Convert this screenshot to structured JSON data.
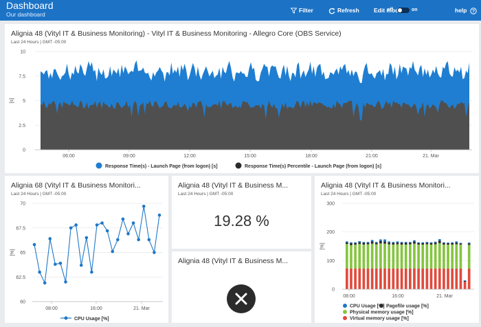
{
  "header": {
    "title": "Dashboard",
    "subtitle": "Our dashboard",
    "filter_label": "Filter",
    "refresh_label": "Refresh",
    "edit_mode_label": "Edit mode",
    "toggle_off": "off",
    "toggle_on": "on",
    "help_label": "help"
  },
  "colors": {
    "header_bg": "#1c73c6",
    "blue_series": "#1f7ed1",
    "grey_series": "#4f4f4f",
    "cpu": "#1f77c8",
    "physical": "#86c540",
    "virtual": "#e04b3d",
    "pagefile": "#2a2a2a"
  },
  "panels": {
    "main": {
      "title": "Alignia 48 (Vityl IT & Business Monitoring) - Vityl IT & Business Monitoring - Allegro Core (OBS Service)",
      "subtitle": "Last 24 Hours | GMT -05:00"
    },
    "cpu": {
      "title": "Alignia 68 (Vityl IT & Business Monitori...",
      "subtitle": "Last 24 Hours | GMT -05:00"
    },
    "value": {
      "title": "Alignia 48 (Vityl IT & Business M...",
      "subtitle": "Last 24 Hours | GMT -05:00",
      "value": "19.28 %"
    },
    "error": {
      "title": "Alignia 48 (Vityl IT & Business M..."
    },
    "memory": {
      "title": "Alignia 48 (Vityl IT & Business Monitori...",
      "subtitle": "Last 24 Hours | GMT -05:00"
    }
  },
  "chart_data": [
    {
      "type": "area",
      "y_axis_label": "[s]",
      "ylim": [
        0,
        10
      ],
      "y_ticks": [
        "0",
        "2.5",
        "5",
        "7.5",
        "10"
      ],
      "x_ticks": [
        "06:00",
        "09:00",
        "12:00",
        "15:00",
        "18:00",
        "21:00",
        "21. Mar"
      ],
      "series": [
        {
          "name": "Response Time(s) - Launch Page (from logon) [s]",
          "approx_mean": 8.0,
          "approx_range": [
            6.8,
            9.2
          ]
        },
        {
          "name": "Response Time(s) Percentile - Launch Page (from logon) [s]",
          "approx_mean": 4.6,
          "approx_range": [
            3.0,
            5.2
          ]
        }
      ]
    },
    {
      "type": "line",
      "y_axis_label": "[%]",
      "ylim": [
        60,
        70
      ],
      "y_ticks": [
        "60",
        "62.5",
        "65",
        "67.5",
        "70"
      ],
      "x_ticks": [
        "08:00",
        "16:00",
        "21. Mar"
      ],
      "series": [
        {
          "name": "CPU Usage [%]",
          "values": [
            65.8,
            63.0,
            61.9,
            66.4,
            63.8,
            63.9,
            62.0,
            67.5,
            67.8,
            63.7,
            66.5,
            63.0,
            67.8,
            68.0,
            67.2,
            65.1,
            66.3,
            68.4,
            66.9,
            68.0,
            66.3,
            69.7,
            66.3,
            65.0,
            68.8
          ]
        }
      ]
    },
    {
      "type": "bar",
      "y_axis_label": "[%]",
      "ylim": [
        0,
        300
      ],
      "y_ticks": [
        "0",
        "100",
        "200",
        "300"
      ],
      "x_ticks": [
        "08:00",
        "16:00",
        "21. Mar"
      ],
      "series": [
        {
          "name": "CPU Usage [%]",
          "values": [
            3,
            3,
            3,
            4,
            3,
            3,
            5,
            3,
            6,
            7,
            4,
            3,
            4,
            3,
            3,
            3,
            4,
            3,
            3,
            3,
            3,
            3,
            5,
            3,
            2,
            3,
            4,
            2,
            2,
            3
          ]
        },
        {
          "name": "Pagefile usage [%]",
          "values": [
            6,
            7,
            5,
            6,
            6,
            5,
            8,
            5,
            8,
            8,
            6,
            6,
            6,
            6,
            6,
            5,
            8,
            5,
            5,
            5,
            5,
            6,
            9,
            5,
            5,
            5,
            6,
            4,
            3,
            5
          ]
        },
        {
          "name": "Physical memory usage [%]",
          "values": [
            85,
            82,
            84,
            85,
            84,
            85,
            86,
            85,
            87,
            86,
            85,
            84,
            85,
            84,
            84,
            85,
            86,
            84,
            84,
            85,
            84,
            85,
            88,
            84,
            84,
            84,
            85,
            84,
            0,
            83
          ]
        },
        {
          "name": "Virtual memory usage [%]",
          "values": [
            73,
            72,
            72,
            73,
            72,
            72,
            73,
            72,
            73,
            73,
            72,
            72,
            72,
            72,
            72,
            72,
            73,
            72,
            72,
            72,
            72,
            72,
            73,
            72,
            72,
            72,
            72,
            72,
            26,
            72
          ]
        }
      ]
    }
  ]
}
